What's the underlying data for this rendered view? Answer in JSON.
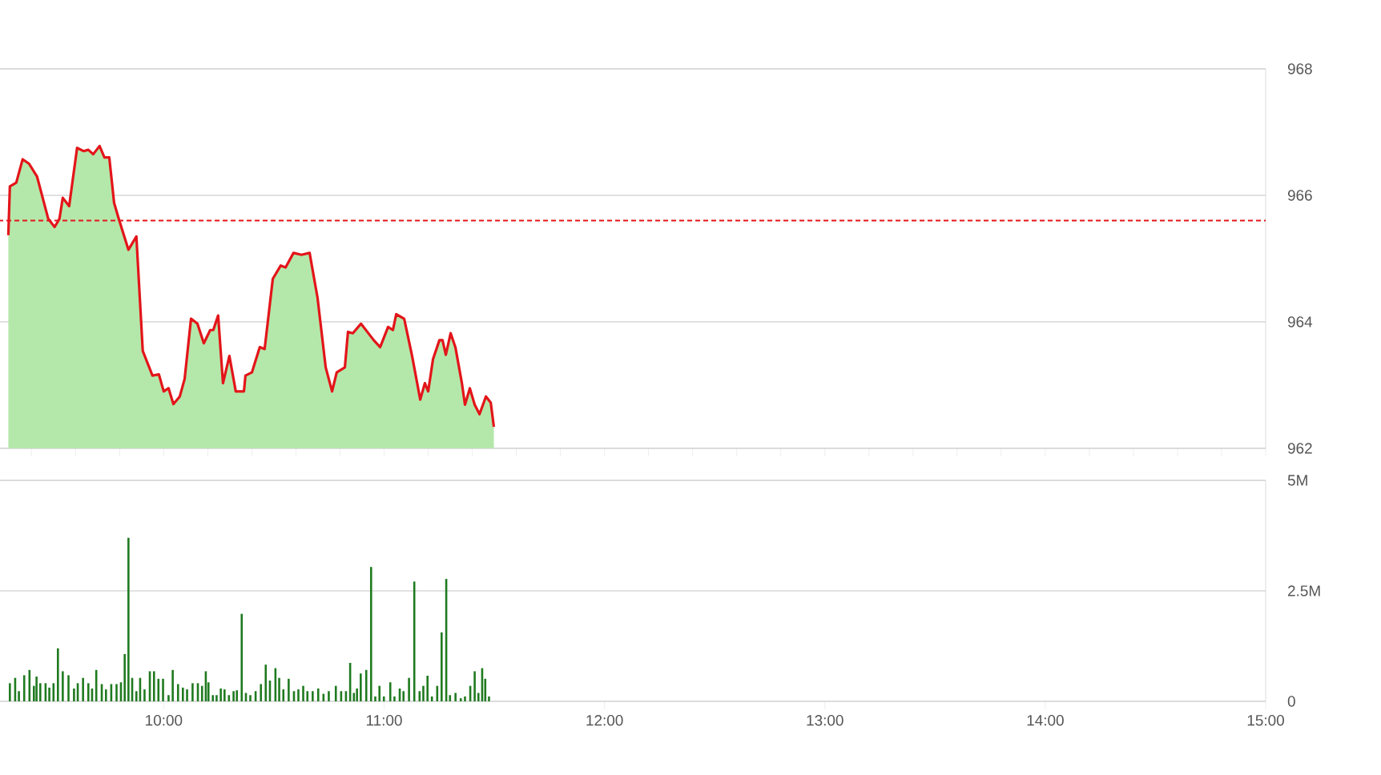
{
  "chart_data": [
    {
      "type": "area",
      "x": [
        9.295,
        9.302,
        9.331,
        9.36,
        9.389,
        9.425,
        9.476,
        9.505,
        9.527,
        9.542,
        9.571,
        9.607,
        9.636,
        9.658,
        9.68,
        9.709,
        9.731,
        9.753,
        9.775,
        9.796,
        9.84,
        9.876,
        9.905,
        9.949,
        9.978,
        10.0,
        10.022,
        10.044,
        10.073,
        10.095,
        10.124,
        10.153,
        10.182,
        10.211,
        10.225,
        10.247,
        10.269,
        10.298,
        10.327,
        10.364,
        10.371,
        10.4,
        10.436,
        10.458,
        10.495,
        10.531,
        10.553,
        10.589,
        10.625,
        10.662,
        10.698,
        10.735,
        10.764,
        10.785,
        10.822,
        10.836,
        10.858,
        10.895,
        10.953,
        10.982,
        11.018,
        11.04,
        11.055,
        11.091,
        11.127,
        11.164,
        11.185,
        11.2,
        11.222,
        11.251,
        11.265,
        11.28,
        11.302,
        11.324,
        11.353,
        11.367,
        11.389,
        11.411,
        11.433,
        11.462,
        11.484,
        11.498
      ],
      "series": [
        {
          "type": "area",
          "color": "#b4e8aa",
          "values": [
            965.37,
            966.14,
            966.2,
            966.57,
            966.5,
            966.3,
            965.63,
            965.5,
            965.63,
            965.96,
            965.83,
            966.75,
            966.7,
            966.72,
            966.65,
            966.78,
            966.6,
            966.6,
            965.88,
            965.63,
            965.14,
            965.35,
            963.54,
            963.15,
            963.17,
            962.9,
            962.95,
            962.7,
            962.82,
            963.1,
            964.05,
            963.97,
            963.66,
            963.87,
            963.87,
            964.1,
            963.03,
            963.46,
            962.9,
            962.9,
            963.15,
            963.2,
            963.6,
            963.57,
            964.68,
            964.89,
            964.86,
            965.09,
            965.06,
            965.09,
            964.38,
            963.28,
            962.9,
            963.2,
            963.28,
            963.84,
            963.82,
            963.97,
            963.71,
            963.6,
            963.92,
            963.87,
            964.12,
            964.05,
            963.46,
            962.77,
            963.03,
            962.9,
            963.41,
            963.71,
            963.71,
            963.48,
            963.82,
            963.59,
            963.03,
            962.69,
            962.95,
            962.69,
            962.54,
            962.82,
            962.72,
            962.34
          ]
        },
        {
          "type": "line",
          "color": "#e3151a",
          "values": [
            965.37,
            966.14,
            966.2,
            966.57,
            966.5,
            966.3,
            965.63,
            965.5,
            965.63,
            965.96,
            965.83,
            966.75,
            966.7,
            966.72,
            966.65,
            966.78,
            966.6,
            966.6,
            965.88,
            965.63,
            965.14,
            965.35,
            963.54,
            963.15,
            963.17,
            962.9,
            962.95,
            962.7,
            962.82,
            963.1,
            964.05,
            963.97,
            963.66,
            963.87,
            963.87,
            964.1,
            963.03,
            963.46,
            962.9,
            962.9,
            963.15,
            963.2,
            963.6,
            963.57,
            964.68,
            964.89,
            964.86,
            965.09,
            965.06,
            965.09,
            964.38,
            963.28,
            962.9,
            963.2,
            963.28,
            963.84,
            963.82,
            963.97,
            963.71,
            963.6,
            963.92,
            963.87,
            964.12,
            964.05,
            963.46,
            962.77,
            963.03,
            962.9,
            963.41,
            963.71,
            963.71,
            963.48,
            963.82,
            963.59,
            963.03,
            962.69,
            962.95,
            962.69,
            962.54,
            962.82,
            962.72,
            962.34
          ]
        }
      ],
      "xlim": [
        9.25,
        15
      ],
      "ylim": [
        962,
        968
      ],
      "yticks": [
        962,
        964,
        966,
        968
      ],
      "grid": "y",
      "tick_labels": "y",
      "ref_lines": [
        {
          "axis": "y",
          "value": 965.6,
          "color": "#e3151a",
          "line_style": "dashed"
        }
      ]
    },
    {
      "type": "bar",
      "color": "#1f7a1f",
      "x": [
        9.302,
        9.326,
        9.343,
        9.367,
        9.391,
        9.411,
        9.423,
        9.44,
        9.464,
        9.481,
        9.5,
        9.52,
        9.542,
        9.568,
        9.593,
        9.61,
        9.634,
        9.658,
        9.675,
        9.694,
        9.719,
        9.738,
        9.762,
        9.786,
        9.806,
        9.823,
        9.84,
        9.857,
        9.876,
        9.893,
        9.913,
        9.937,
        9.956,
        9.976,
        9.997,
        10.022,
        10.041,
        10.065,
        10.087,
        10.106,
        10.131,
        10.155,
        10.174,
        10.191,
        10.203,
        10.223,
        10.24,
        10.259,
        10.276,
        10.296,
        10.317,
        10.332,
        10.354,
        10.373,
        10.393,
        10.417,
        10.441,
        10.463,
        10.482,
        10.507,
        10.524,
        10.543,
        10.567,
        10.591,
        10.611,
        10.633,
        10.652,
        10.676,
        10.701,
        10.725,
        10.749,
        10.781,
        10.805,
        10.827,
        10.846,
        10.863,
        10.877,
        10.894,
        10.919,
        10.941,
        10.96,
        10.979,
        10.999,
        11.028,
        11.047,
        11.071,
        11.088,
        11.113,
        11.137,
        11.161,
        11.178,
        11.197,
        11.217,
        11.241,
        11.261,
        11.282,
        11.299,
        11.324,
        11.348,
        11.367,
        11.391,
        11.411,
        11.428,
        11.445,
        11.459,
        11.476
      ],
      "values": [
        0.41,
        0.53,
        0.23,
        0.59,
        0.71,
        0.35,
        0.56,
        0.41,
        0.41,
        0.31,
        0.41,
        1.2,
        0.68,
        0.59,
        0.29,
        0.41,
        0.53,
        0.41,
        0.29,
        0.71,
        0.39,
        0.27,
        0.39,
        0.39,
        0.43,
        1.07,
        3.7,
        0.53,
        0.23,
        0.53,
        0.27,
        0.68,
        0.68,
        0.51,
        0.51,
        0.14,
        0.71,
        0.39,
        0.31,
        0.27,
        0.41,
        0.41,
        0.35,
        0.68,
        0.43,
        0.14,
        0.14,
        0.29,
        0.27,
        0.14,
        0.23,
        0.25,
        1.98,
        0.19,
        0.14,
        0.23,
        0.39,
        0.83,
        0.47,
        0.75,
        0.53,
        0.27,
        0.51,
        0.23,
        0.27,
        0.35,
        0.23,
        0.23,
        0.29,
        0.17,
        0.23,
        0.35,
        0.23,
        0.23,
        0.87,
        0.19,
        0.29,
        0.63,
        0.71,
        3.04,
        0.11,
        0.35,
        0.11,
        0.43,
        0.11,
        0.29,
        0.23,
        0.53,
        2.71,
        0.23,
        0.35,
        0.58,
        0.11,
        0.35,
        1.56,
        2.77,
        0.14,
        0.19,
        0.07,
        0.11,
        0.35,
        0.68,
        0.19,
        0.75,
        0.51,
        0.11
      ],
      "xlim": [
        9.25,
        15
      ],
      "xticks": [
        {
          "value": 10,
          "label": "10:00"
        },
        {
          "value": 11,
          "label": "11:00"
        },
        {
          "value": 12,
          "label": "12:00"
        },
        {
          "value": 13,
          "label": "13:00"
        },
        {
          "value": 14,
          "label": "14:00"
        },
        {
          "value": 15,
          "label": "15:00"
        }
      ],
      "ylim": [
        0,
        5
      ],
      "yticks": [
        0,
        {
          "value": 2.5,
          "label": "2.5M"
        },
        {
          "value": 5,
          "label": "5M"
        }
      ],
      "grid": "y"
    }
  ]
}
